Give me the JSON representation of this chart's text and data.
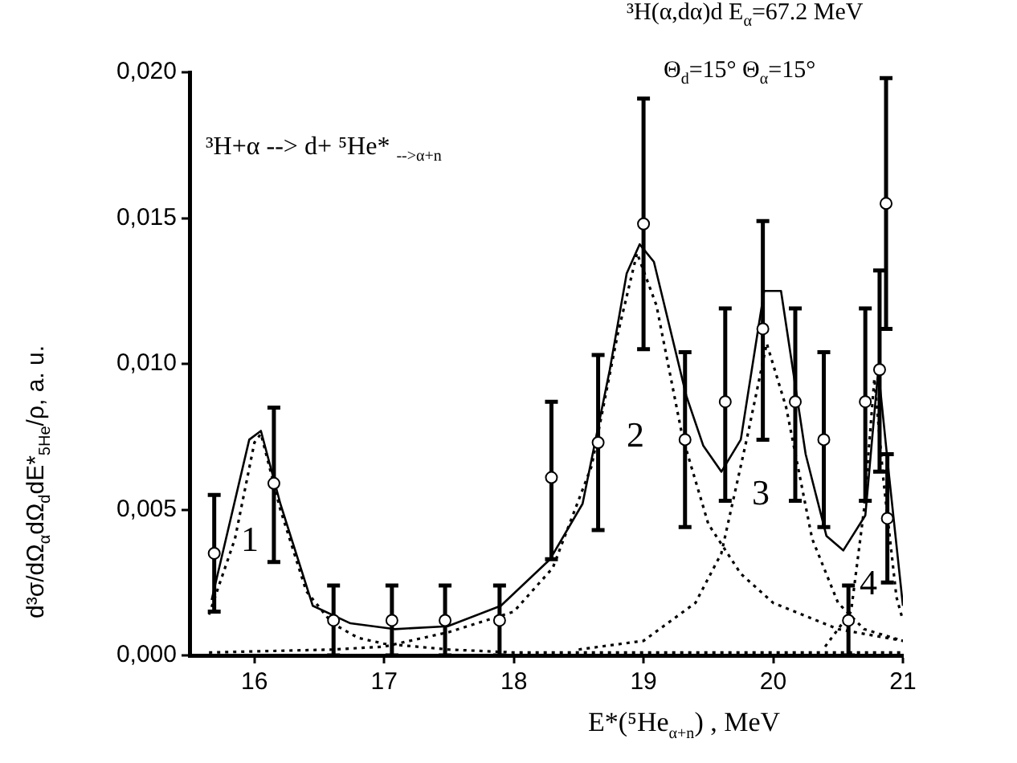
{
  "chart_data": {
    "type": "line",
    "xlabel": "E*(⁵He$_{α+n}$) , MeV",
    "ylabel": "d³σ/dΩ$_{α}$dΩ$_{d}$dE*$_{5He}$/ρ, a. u.",
    "xlim": [
      15.5,
      21
    ],
    "xticks": [
      16,
      17,
      18,
      19,
      20,
      21
    ],
    "ylim": [
      0,
      0.02
    ],
    "yticks": [
      {
        "value": 0,
        "label": "0,000"
      },
      {
        "value": 0.005,
        "label": "0,005"
      },
      {
        "value": 0.01,
        "label": "0,010"
      },
      {
        "value": 0.015,
        "label": "0,015"
      },
      {
        "value": 0.02,
        "label": "0,020"
      }
    ],
    "legend": false,
    "annotations": [
      "³H+α --> d+ ⁵He* $_{-->α+n}$",
      "³H(α,dα)d E$_{α}$=67.2 MeV",
      "Θ$_{d}$=15° Θ$_{α}$=15°",
      "1",
      "2",
      "3",
      "4"
    ],
    "series": [
      {
        "type": "scatter",
        "color": "#000000",
        "marker": "circle",
        "x": [
          15.69,
          16.15,
          16.61,
          17.06,
          17.47,
          17.89,
          18.29,
          18.65,
          19.0,
          19.32,
          19.63,
          19.92,
          20.17,
          20.39,
          20.58,
          20.71,
          20.82,
          20.87,
          20.88
        ],
        "values": [
          0.0035,
          0.0059,
          0.0012,
          0.0012,
          0.0012,
          0.0012,
          0.0061,
          0.0073,
          0.0148,
          0.0074,
          0.0087,
          0.0112,
          0.0087,
          0.0074,
          0.0012,
          0.0087,
          0.0098,
          0.0155,
          0.0047
        ],
        "errors": [
          [
            0.0015,
            0.0055
          ],
          [
            0.0032,
            0.0085
          ],
          [
            0,
            0.0024
          ],
          [
            0,
            0.0024
          ],
          [
            0,
            0.0024
          ],
          [
            0,
            0.0024
          ],
          [
            0.0033,
            0.0087
          ],
          [
            0.0043,
            0.0103
          ],
          [
            0.0105,
            0.0191
          ],
          [
            0.0044,
            0.0104
          ],
          [
            0.0053,
            0.0119
          ],
          [
            0.0074,
            0.0149
          ],
          [
            0.0053,
            0.0119
          ],
          [
            0.0044,
            0.0104
          ],
          [
            0,
            0.0024
          ],
          [
            0.0053,
            0.0119
          ],
          [
            0.0063,
            0.0132
          ],
          [
            0.0112,
            0.0198
          ],
          [
            0.0025,
            0.0069
          ]
        ]
      },
      {
        "color": "#000000",
        "line_style": "solid",
        "marker": "none",
        "x": [
          15.67,
          15.96,
          16.05,
          16.2,
          16.45,
          16.74,
          17.08,
          17.49,
          17.9,
          18.28,
          18.53,
          18.74,
          18.87,
          18.97,
          19.08,
          19.33,
          19.46,
          19.6,
          19.75,
          19.93,
          20.06,
          20.25,
          20.41,
          20.54,
          20.71,
          20.81,
          20.89,
          21.0
        ],
        "values": [
          0.0019,
          0.0074,
          0.0077,
          0.0052,
          0.0017,
          0.0011,
          0.0009,
          0.001,
          0.0017,
          0.0033,
          0.0052,
          0.0098,
          0.0131,
          0.0141,
          0.0135,
          0.0089,
          0.0072,
          0.0063,
          0.0074,
          0.0125,
          0.0125,
          0.0069,
          0.0041,
          0.0036,
          0.0048,
          0.0098,
          0.0063,
          0.0017
        ]
      },
      {
        "type": "line",
        "color": "#000000",
        "line_style": "dotted",
        "marker": "none",
        "x": [
          15.65,
          15.85,
          16.0,
          16.05,
          16.2,
          16.4,
          16.6,
          16.8,
          17.0,
          17.5,
          18.0,
          19.0,
          20.0,
          21.0
        ],
        "values": [
          0.0014,
          0.004,
          0.0073,
          0.0076,
          0.005,
          0.0022,
          0.0011,
          0.0006,
          0.0004,
          0.0002,
          0.0001,
          0.0001,
          0.0001,
          0.0001
        ]
      },
      {
        "type": "line",
        "color": "#000000",
        "line_style": "dotted",
        "marker": "none",
        "x": [
          15.65,
          16.6,
          17.0,
          17.5,
          18.0,
          18.3,
          18.6,
          18.8,
          18.95,
          19.1,
          19.3,
          19.5,
          19.75,
          20.0,
          20.5,
          21.0
        ],
        "values": [
          0.0001,
          0.0002,
          0.0003,
          0.0008,
          0.0015,
          0.003,
          0.0065,
          0.011,
          0.0138,
          0.012,
          0.0075,
          0.0045,
          0.0028,
          0.0018,
          0.0009,
          0.0005
        ]
      },
      {
        "type": "line",
        "color": "#000000",
        "line_style": "dotted",
        "marker": "none",
        "x": [
          18.5,
          19.0,
          19.4,
          19.6,
          19.8,
          19.95,
          20.1,
          20.3,
          20.5,
          20.7,
          21.0
        ],
        "values": [
          0.0002,
          0.0005,
          0.0018,
          0.0035,
          0.0075,
          0.0107,
          0.0085,
          0.004,
          0.0018,
          0.0009,
          0.0005
        ]
      },
      {
        "type": "line",
        "color": "#000000",
        "line_style": "dotted",
        "marker": "none",
        "x": [
          20.4,
          20.6,
          20.7,
          20.78,
          20.85,
          20.95,
          21.0
        ],
        "values": [
          0.0003,
          0.0015,
          0.005,
          0.0095,
          0.006,
          0.002,
          0.0012
        ]
      }
    ]
  }
}
